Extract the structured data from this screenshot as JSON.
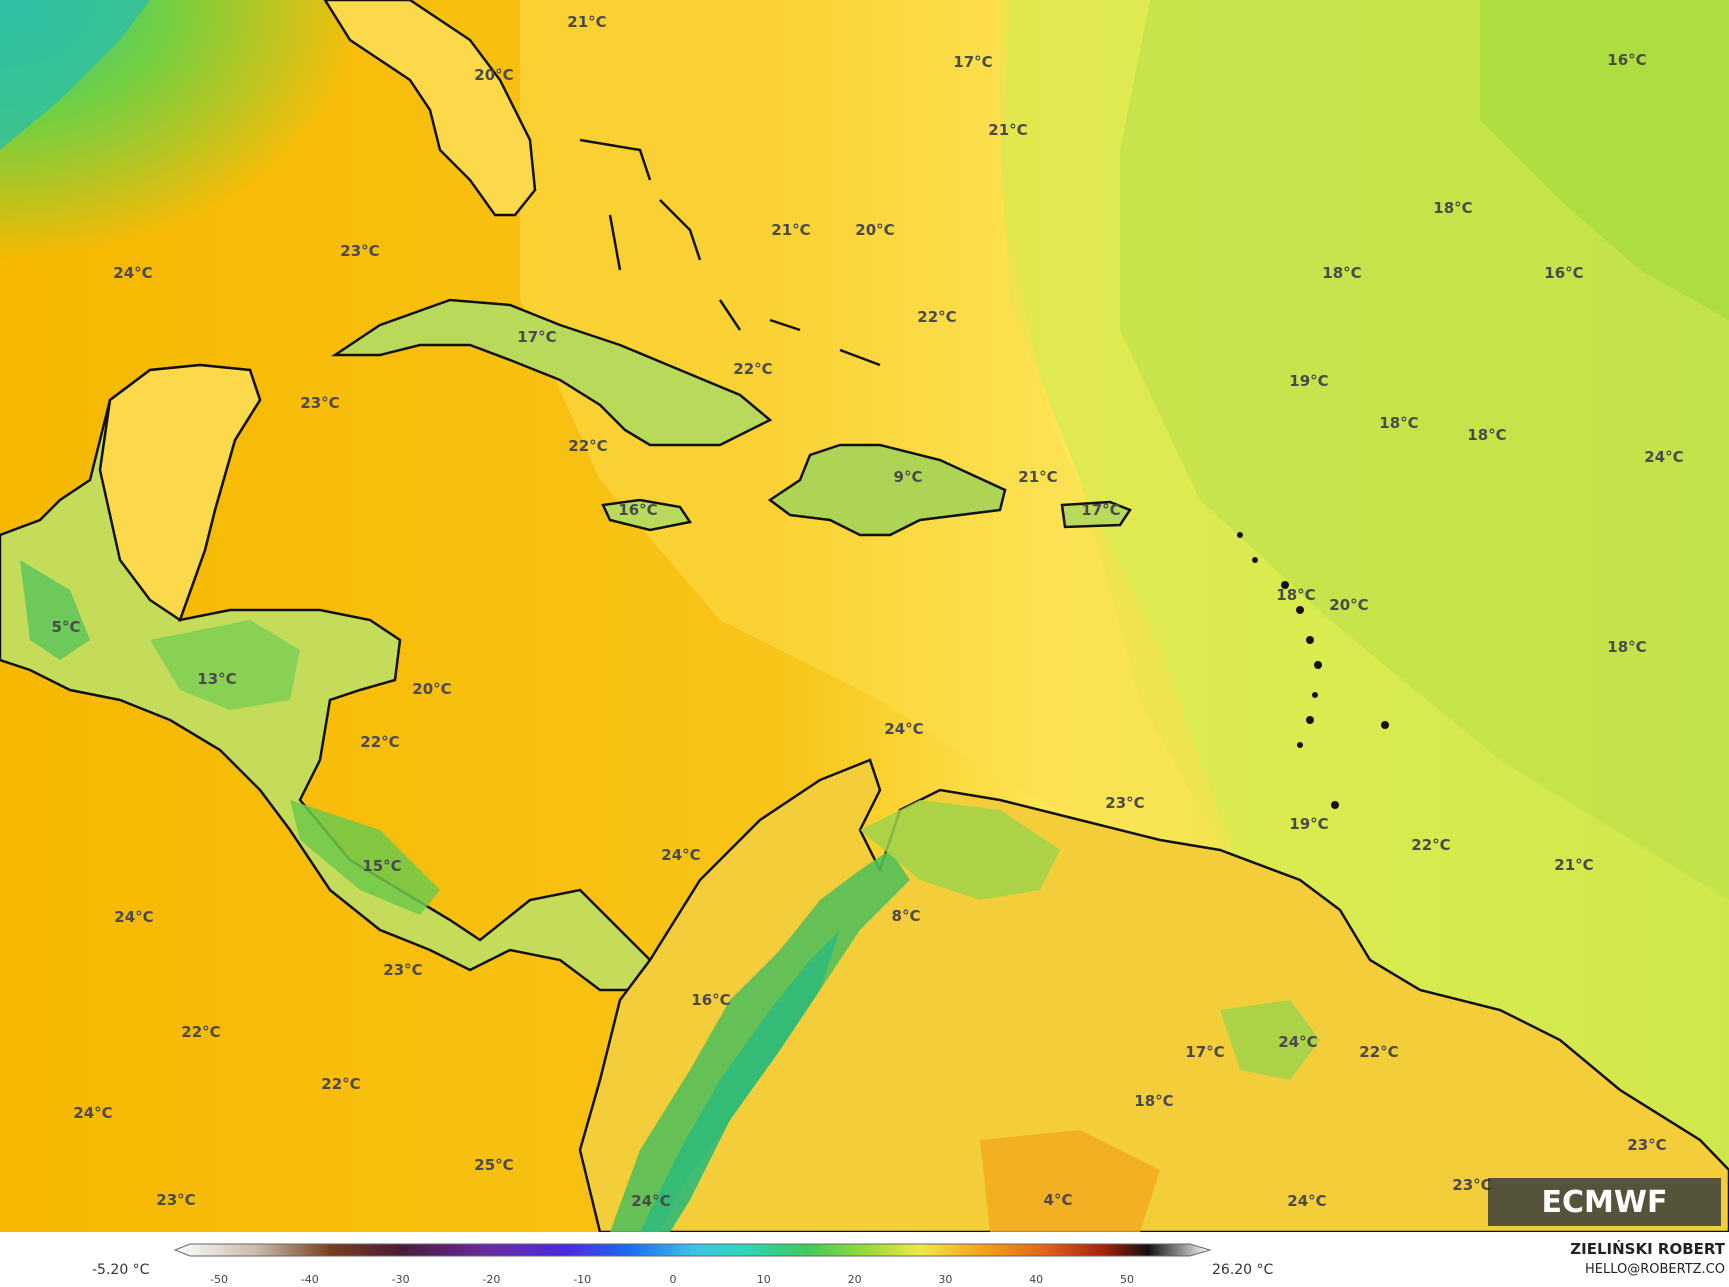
{
  "map": {
    "type": "temperature-field",
    "colors": {
      "warm": "#f6b400",
      "mid": "#fbd94a",
      "cool": "#e9ee55",
      "cooler": "#c4e24a",
      "green": "#a6d83a",
      "land_green": "#6fc94a",
      "coast": "#111111",
      "border": "#6a6a7a"
    },
    "labels": [
      {
        "text": "21°C"
      },
      {
        "text": "20°C"
      },
      {
        "text": "17°C"
      },
      {
        "text": "21°C"
      },
      {
        "text": "16°C"
      },
      {
        "text": "24°C"
      },
      {
        "text": "23°C"
      },
      {
        "text": "21°C"
      },
      {
        "text": "20°C"
      },
      {
        "text": "18°C"
      },
      {
        "text": "16°C"
      },
      {
        "text": "22°C"
      },
      {
        "text": "17°C"
      },
      {
        "text": "22°C"
      },
      {
        "text": "23°C"
      },
      {
        "text": "18°C"
      },
      {
        "text": "19°C"
      },
      {
        "text": "18°C"
      },
      {
        "text": "18°C"
      },
      {
        "text": "22°C"
      },
      {
        "text": "9°C"
      },
      {
        "text": "21°C"
      },
      {
        "text": "16°C"
      },
      {
        "text": "17°C"
      },
      {
        "text": "24°C"
      },
      {
        "text": "18°C"
      },
      {
        "text": "20°C"
      },
      {
        "text": "5°C"
      },
      {
        "text": "18°C"
      },
      {
        "text": "13°C"
      },
      {
        "text": "20°C"
      },
      {
        "text": "22°C"
      },
      {
        "text": "24°C"
      },
      {
        "text": "23°C"
      },
      {
        "text": "19°C"
      },
      {
        "text": "24°C"
      },
      {
        "text": "22°C"
      },
      {
        "text": "21°C"
      },
      {
        "text": "15°C"
      },
      {
        "text": "8°C"
      },
      {
        "text": "24°C"
      },
      {
        "text": "23°C"
      },
      {
        "text": "16°C"
      },
      {
        "text": "22°C"
      },
      {
        "text": "17°C"
      },
      {
        "text": "24°C"
      },
      {
        "text": "22°C"
      },
      {
        "text": "22°C"
      },
      {
        "text": "18°C"
      },
      {
        "text": "24°C"
      },
      {
        "text": "25°C"
      },
      {
        "text": "23°C"
      },
      {
        "text": "23°C"
      },
      {
        "text": "4°C"
      },
      {
        "text": "24°C"
      },
      {
        "text": "24°C"
      },
      {
        "text": "23°C"
      }
    ]
  },
  "colorbar": {
    "min_label": "-5.20 °C",
    "max_label": "26.20 °C",
    "ticks": [
      "-50",
      "-40",
      "-30",
      "-20",
      "-10",
      "0",
      "10",
      "20",
      "30",
      "40",
      "50"
    ]
  },
  "credits": {
    "author": "ZIELIŃSKI ROBERT",
    "email": "HELLO@ROBERTZ.CO",
    "logo_text": "ECMWF"
  }
}
